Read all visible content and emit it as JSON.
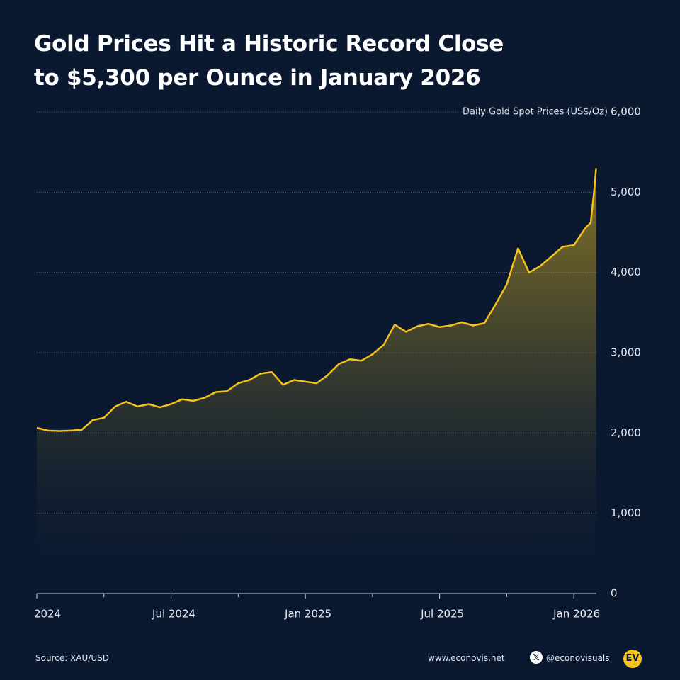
{
  "chart_data": {
    "type": "line",
    "title_lines": [
      "Gold Prices Hit a Historic Record Close",
      "to $5,300 per Ounce in January 2026"
    ],
    "y_label": "Daily Gold Spot Prices (US$/Oz)",
    "x": [
      2024.0,
      2024.042,
      2024.083,
      2024.125,
      2024.167,
      2024.208,
      2024.25,
      2024.292,
      2024.333,
      2024.375,
      2024.417,
      2024.458,
      2024.5,
      2024.542,
      2024.583,
      2024.625,
      2024.667,
      2024.708,
      2024.75,
      2024.792,
      2024.833,
      2024.875,
      2024.917,
      2024.958,
      2025.0,
      2025.042,
      2025.083,
      2025.125,
      2025.167,
      2025.208,
      2025.25,
      2025.292,
      2025.333,
      2025.375,
      2025.417,
      2025.458,
      2025.5,
      2025.542,
      2025.583,
      2025.625,
      2025.667,
      2025.708,
      2025.75,
      2025.792,
      2025.833,
      2025.875,
      2025.917,
      2025.958,
      2026.0,
      2026.042,
      2026.063,
      2026.075,
      2026.083
    ],
    "series": [
      {
        "name": "Gold spot price",
        "color": "#f5c21b",
        "values": [
          2065,
          2030,
          2025,
          2030,
          2040,
          2160,
          2190,
          2330,
          2390,
          2330,
          2360,
          2320,
          2360,
          2420,
          2400,
          2440,
          2510,
          2520,
          2620,
          2660,
          2740,
          2760,
          2600,
          2660,
          2640,
          2620,
          2720,
          2860,
          2920,
          2900,
          2980,
          3100,
          3350,
          3260,
          3330,
          3360,
          3320,
          3340,
          3380,
          3340,
          3370,
          3600,
          3850,
          4300,
          4000,
          4080,
          4200,
          4320,
          4340,
          4550,
          4620,
          5000,
          5300
        ]
      }
    ],
    "xlim": [
      2024,
      2026.084
    ],
    "xticks": [
      2024,
      {
        "value": 2024.5,
        "label": "Jul 2024"
      },
      {
        "value": 2025,
        "label": "Jan 2025"
      },
      {
        "value": 2025.5,
        "label": "Jul 2025"
      },
      {
        "value": 2026,
        "label": "Jan 2026"
      }
    ],
    "minor_xticks": [
      2024.25,
      2024.75,
      2025.25,
      2025.75
    ],
    "ylim": [
      0,
      6000
    ],
    "yticks": [
      0,
      {
        "value": 1000,
        "label": "1,000"
      },
      {
        "value": 2000,
        "label": "2,000"
      },
      {
        "value": 3000,
        "label": "3,000"
      },
      {
        "value": 4000,
        "label": "4,000"
      },
      {
        "value": 5000,
        "label": "5,000"
      },
      {
        "value": 6000,
        "label": "6,000"
      }
    ],
    "grid": true
  },
  "footer": {
    "source": "Source: XAU/USD",
    "website": "www.econovis.net",
    "handle": "@econovisuals",
    "logo": "EV"
  }
}
